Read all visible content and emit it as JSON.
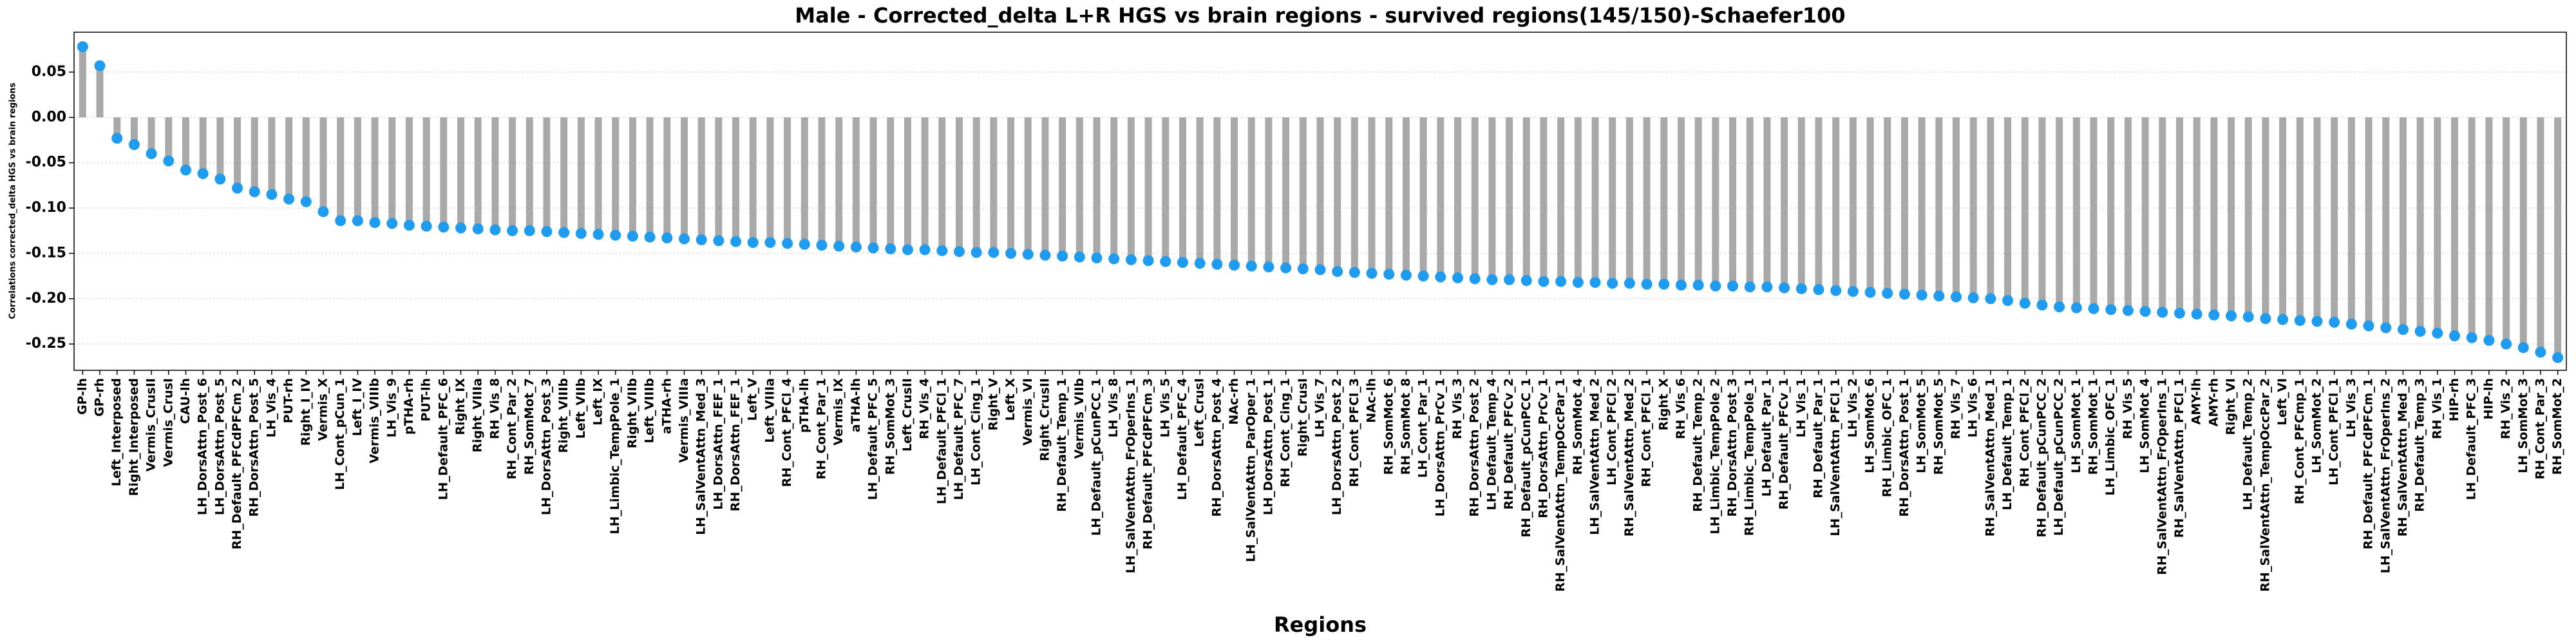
{
  "chart_data": {
    "type": "lollipop",
    "title": "Male - Corrected_delta L+R HGS vs brain regions - survived regions(145/150)-Schaefer100",
    "x_label": "Regions",
    "y_label": "Correlations corrected_delta HGS vs brain regions",
    "stem_color": "#a9a9a9",
    "color": "#1f9cf0",
    "grid": true,
    "ylim": [
      -0.279,
      0.094
    ],
    "yticks": [
      0.05,
      {
        "value": 0,
        "label": "0.00"
      },
      -0.05,
      {
        "value": -0.1,
        "label": "-0.10"
      },
      -0.15,
      {
        "value": -0.2,
        "label": "-0.20"
      },
      -0.25
    ],
    "categories": [
      "GP-lh",
      "GP-rh",
      "Left_Interposed",
      "Right_Interposed",
      "Vermis_CrusII",
      "Vermis_CrusI",
      "CAU-lh",
      "LH_DorsAttn_Post_6",
      "LH_DorsAttn_Post_5",
      "RH_Default_PFCdPFCm_2",
      "RH_DorsAttn_Post_5",
      "LH_Vis_4",
      "PUT-rh",
      "Right_I_IV",
      "Vermis_X",
      "LH_Cont_pCun_1",
      "Left_I_IV",
      "Vermis_VIIIb",
      "LH_Vis_9",
      "pTHA-rh",
      "PUT-lh",
      "LH_Default_PFC_6",
      "Right_IX",
      "Right_VIIIa",
      "RH_Vis_8",
      "RH_Cont_Par_2",
      "RH_SomMot_7",
      "LH_DorsAttn_Post_3",
      "Right_VIIIb",
      "Left_VIIb",
      "Left_IX",
      "LH_Limbic_TempPole_1",
      "Right_VIIb",
      "Left_VIIIb",
      "aTHA-rh",
      "Vermis_VIIIa",
      "LH_SalVentAttn_Med_3",
      "LH_DorsAttn_FEF_1",
      "RH_DorsAttn_FEF_1",
      "Left_V",
      "Left_VIIIa",
      "RH_Cont_PFCl_4",
      "pTHA-lh",
      "RH_Cont_Par_1",
      "Vermis_IX",
      "aTHA-lh",
      "LH_Default_PFC_5",
      "RH_SomMot_3",
      "Left_CrusII",
      "RH_Vis_4",
      "LH_Default_PFCl_1",
      "LH_Default_PFC_7",
      "LH_Cont_Cing_1",
      "Right_V",
      "Left_X",
      "Vermis_VI",
      "Right_CrusII",
      "RH_Default_Temp_1",
      "Vermis_VIIb",
      "LH_Default_pCunPCC_1",
      "LH_Vis_8",
      "LH_SalVentAttn_FrOperIns_1",
      "RH_Default_PFCdPFCm_3",
      "LH_Vis_5",
      "LH_Default_PFC_4",
      "Left_CrusI",
      "RH_DorsAttn_Post_4",
      "NAc-rh",
      "LH_SalVentAttn_ParOper_1",
      "LH_DorsAttn_Post_1",
      "RH_Cont_Cing_1",
      "Right_CrusI",
      "LH_Vis_7",
      "LH_DorsAttn_Post_2",
      "RH_Cont_PFCl_3",
      "NAc-lh",
      "RH_SomMot_6",
      "RH_SomMot_8",
      "LH_Cont_Par_1",
      "LH_DorsAttn_PrCv_1",
      "RH_Vis_3",
      "RH_DorsAttn_Post_2",
      "LH_Default_Temp_4",
      "RH_Default_PFCv_2",
      "RH_Default_pCunPCC_1",
      "RH_DorsAttn_PrCv_1",
      "RH_SalVentAttn_TempOccPar_1",
      "RH_SomMot_4",
      "LH_SalVentAttn_Med_2",
      "LH_Cont_PFCl_2",
      "RH_SalVentAttn_Med_2",
      "RH_Cont_PFCl_1",
      "Right_X",
      "RH_Vis_6",
      "RH_Default_Temp_2",
      "LH_Limbic_TempPole_2",
      "RH_DorsAttn_Post_3",
      "RH_Limbic_TempPole_1",
      "LH_Default_Par_1",
      "RH_Default_PFCv_1",
      "LH_Vis_1",
      "RH_Default_Par_1",
      "LH_SalVentAttn_PFCl_1",
      "LH_Vis_2",
      "LH_SomMot_6",
      "RH_Limbic_OFC_1",
      "RH_DorsAttn_Post_1",
      "LH_SomMot_5",
      "RH_SomMot_5",
      "RH_Vis_7",
      "LH_Vis_6",
      "RH_SalVentAttn_Med_1",
      "LH_Default_Temp_1",
      "RH_Cont_PFCl_2",
      "RH_Default_pCunPCC_2",
      "LH_Default_pCunPCC_2",
      "LH_SomMot_1",
      "RH_SomMot_1",
      "LH_Limbic_OFC_1",
      "RH_Vis_5",
      "LH_SomMot_4",
      "RH_SalVentAttn_FrOperIns_1",
      "RH_SalVentAttn_PFCl_1",
      "AMY-lh",
      "AMY-rh",
      "Right_VI",
      "LH_Default_Temp_2",
      "RH_SalVentAttn_TempOccPar_2",
      "Left_VI",
      "RH_Cont_PFCmp_1",
      "LH_SomMot_2",
      "LH_Cont_PFCl_1",
      "LH_Vis_3",
      "RH_Default_PFCdPFCm_1",
      "LH_SalVentAttn_FrOperIns_2",
      "RH_SalVentAttn_Med_3",
      "RH_Default_Temp_3",
      "RH_Vis_1",
      "HIP-rh",
      "LH_Default_PFC_3",
      "HIP-lh",
      "RH_Vis_2",
      "LH_SomMot_3",
      "RH_Cont_Par_3",
      "RH_SomMot_2"
    ],
    "values": [
      0.078,
      0.057,
      -0.023,
      -0.03,
      -0.04,
      -0.048,
      -0.058,
      -0.062,
      -0.068,
      -0.078,
      -0.082,
      -0.085,
      -0.09,
      -0.093,
      -0.104,
      -0.114,
      -0.114,
      -0.116,
      -0.117,
      -0.119,
      -0.12,
      -0.121,
      -0.122,
      -0.123,
      -0.124,
      -0.125,
      -0.125,
      -0.126,
      -0.127,
      -0.128,
      -0.129,
      -0.13,
      -0.131,
      -0.132,
      -0.133,
      -0.134,
      -0.135,
      -0.136,
      -0.137,
      -0.138,
      -0.138,
      -0.139,
      -0.14,
      -0.141,
      -0.142,
      -0.143,
      -0.144,
      -0.145,
      -0.146,
      -0.146,
      -0.147,
      -0.148,
      -0.149,
      -0.149,
      -0.15,
      -0.151,
      -0.152,
      -0.153,
      -0.154,
      -0.155,
      -0.156,
      -0.157,
      -0.158,
      -0.159,
      -0.16,
      -0.161,
      -0.162,
      -0.163,
      -0.164,
      -0.165,
      -0.166,
      -0.167,
      -0.168,
      -0.17,
      -0.171,
      -0.172,
      -0.173,
      -0.174,
      -0.175,
      -0.176,
      -0.177,
      -0.178,
      -0.179,
      -0.179,
      -0.18,
      -0.181,
      -0.181,
      -0.182,
      -0.182,
      -0.183,
      -0.183,
      -0.184,
      -0.184,
      -0.185,
      -0.185,
      -0.186,
      -0.186,
      -0.187,
      -0.187,
      -0.188,
      -0.189,
      -0.19,
      -0.191,
      -0.192,
      -0.193,
      -0.194,
      -0.195,
      -0.196,
      -0.197,
      -0.198,
      -0.199,
      -0.2,
      -0.202,
      -0.205,
      -0.207,
      -0.209,
      -0.21,
      -0.211,
      -0.212,
      -0.213,
      -0.214,
      -0.215,
      -0.216,
      -0.217,
      -0.218,
      -0.219,
      -0.22,
      -0.222,
      -0.223,
      -0.224,
      -0.225,
      -0.226,
      -0.228,
      -0.23,
      -0.232,
      -0.234,
      -0.236,
      -0.238,
      -0.241,
      -0.243,
      -0.246,
      -0.25,
      -0.254,
      -0.259,
      -0.265
    ]
  }
}
